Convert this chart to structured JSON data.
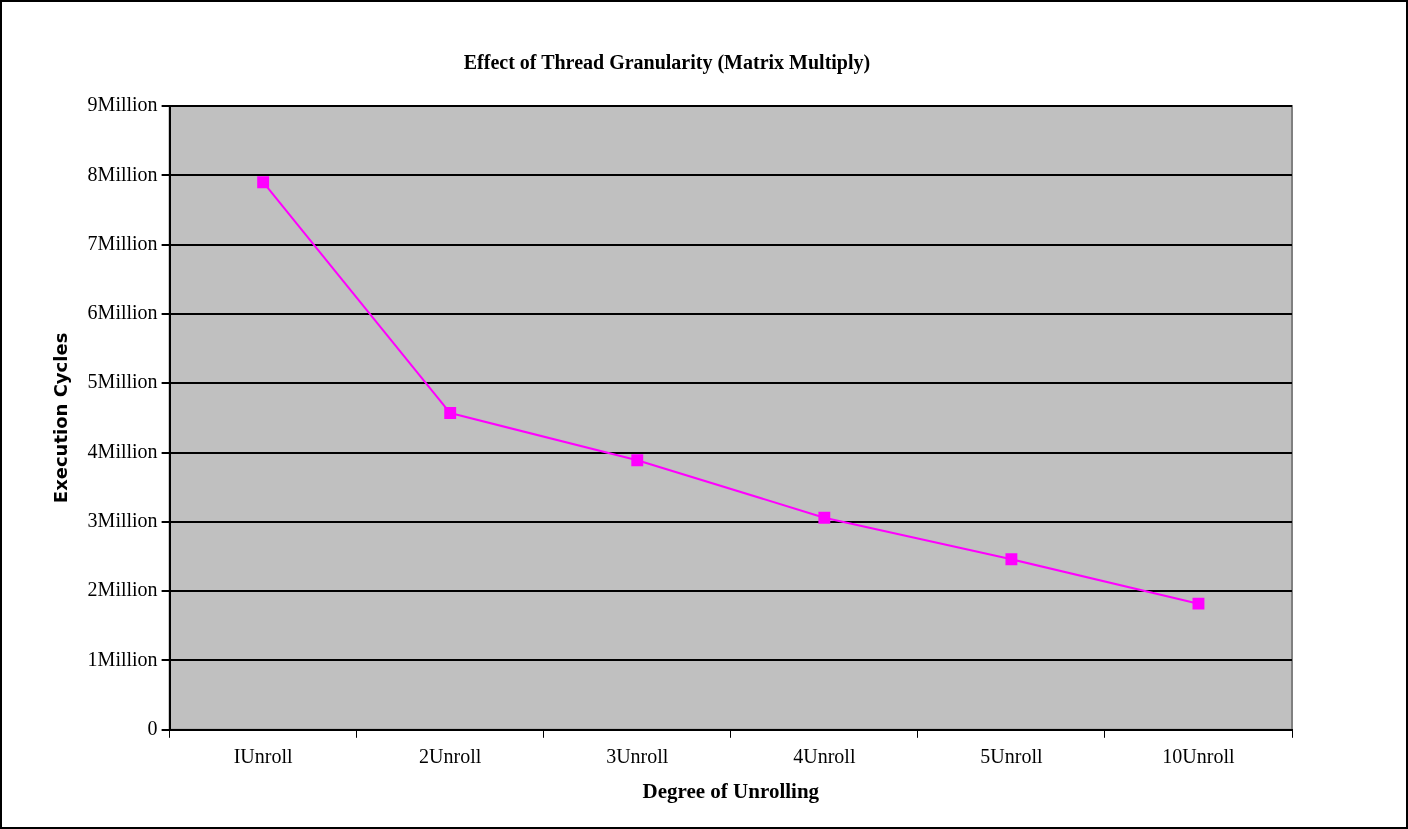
{
  "chart_data": {
    "type": "line",
    "title": "Effect of Thread Granularity (Matrix Multiply)",
    "xlabel": "Degree of Unrolling",
    "ylabel": "Execution Cycles",
    "categories": [
      "IUnroll",
      "2Unroll",
      "3Unroll",
      "4Unroll",
      "5Unroll",
      "10Unroll"
    ],
    "series": [
      {
        "color": "#ff00ff",
        "values": [
          7.9,
          4.57,
          3.89,
          3.06,
          2.46,
          1.82
        ]
      }
    ],
    "ylim": [
      0,
      9
    ],
    "yticks": [
      0,
      {
        "value": 1,
        "label": "1Million"
      },
      {
        "value": 2,
        "label": "2Million"
      },
      {
        "value": 3,
        "label": "3Million"
      },
      {
        "value": 4,
        "label": "4Million"
      },
      {
        "value": 5,
        "label": "5Million"
      },
      {
        "value": 6,
        "label": "6Million"
      },
      {
        "value": 7,
        "label": "7Million"
      },
      {
        "value": 8,
        "label": "8Million"
      },
      {
        "value": 9,
        "label": "9Million"
      }
    ],
    "grid": "y",
    "legend": false,
    "marker": "square",
    "line_style": "solid"
  }
}
